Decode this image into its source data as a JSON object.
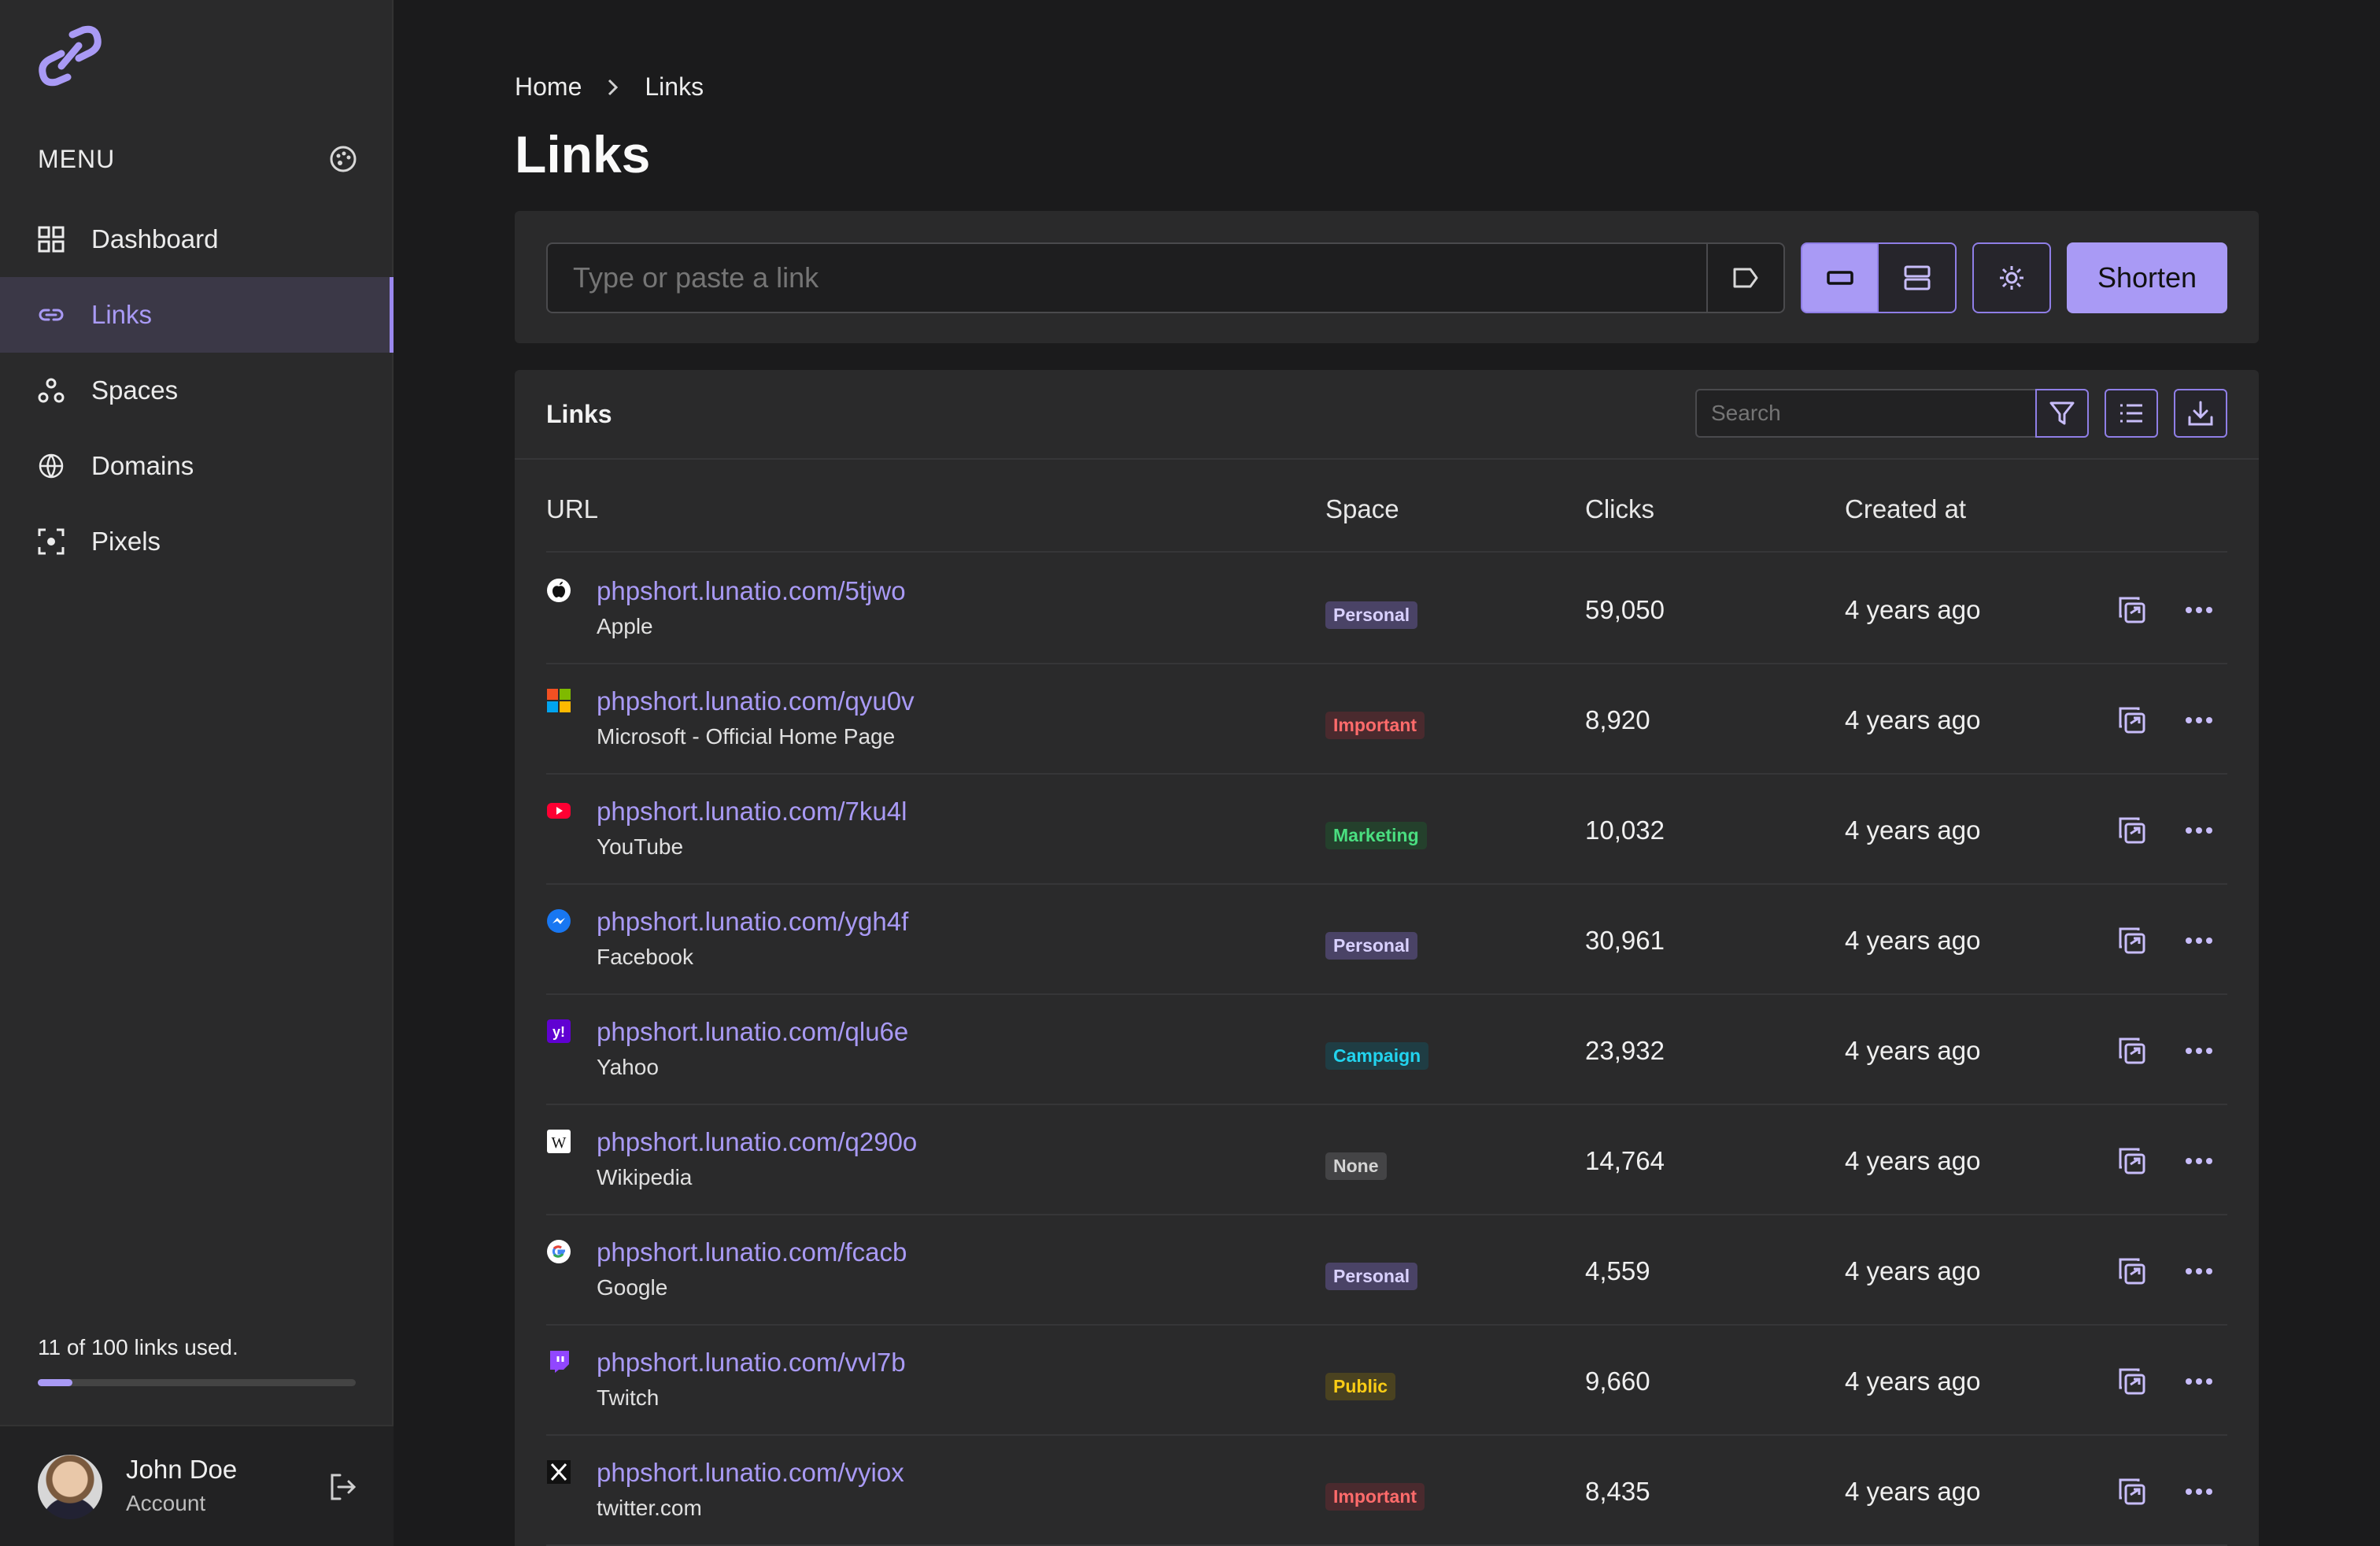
{
  "sidebar": {
    "menu_title": "MENU",
    "items": [
      {
        "label": "Dashboard",
        "icon": "grid-icon"
      },
      {
        "label": "Links",
        "icon": "link-icon"
      },
      {
        "label": "Spaces",
        "icon": "spaces-icon"
      },
      {
        "label": "Domains",
        "icon": "globe-www-icon"
      },
      {
        "label": "Pixels",
        "icon": "focus-icon"
      }
    ],
    "active_index": 1,
    "usage_text": "11 of 100 links used.",
    "usage_fraction": 0.11,
    "user": {
      "name": "John Doe",
      "subtitle": "Account"
    }
  },
  "breadcrumb": {
    "home": "Home",
    "current": "Links"
  },
  "page_title": "Links",
  "shorten": {
    "placeholder": "Type or paste a link",
    "button": "Shorten"
  },
  "links_panel": {
    "title": "Links",
    "search_placeholder": "Search",
    "columns": {
      "url": "URL",
      "space": "Space",
      "clicks": "Clicks",
      "created": "Created at"
    },
    "rows": [
      {
        "url": "phpshort.lunatio.com/5tjwo",
        "title": "Apple",
        "space": "Personal",
        "clicks": "59,050",
        "created": "4 years ago",
        "favicon": "apple-icon"
      },
      {
        "url": "phpshort.lunatio.com/qyu0v",
        "title": "Microsoft - Official Home Page",
        "space": "Important",
        "clicks": "8,920",
        "created": "4 years ago",
        "favicon": "microsoft-icon"
      },
      {
        "url": "phpshort.lunatio.com/7ku4l",
        "title": "YouTube",
        "space": "Marketing",
        "clicks": "10,032",
        "created": "4 years ago",
        "favicon": "youtube-icon"
      },
      {
        "url": "phpshort.lunatio.com/ygh4f",
        "title": "Facebook",
        "space": "Personal",
        "clicks": "30,961",
        "created": "4 years ago",
        "favicon": "messenger-icon"
      },
      {
        "url": "phpshort.lunatio.com/qlu6e",
        "title": "Yahoo",
        "space": "Campaign",
        "clicks": "23,932",
        "created": "4 years ago",
        "favicon": "yahoo-icon"
      },
      {
        "url": "phpshort.lunatio.com/q290o",
        "title": "Wikipedia",
        "space": "None",
        "clicks": "14,764",
        "created": "4 years ago",
        "favicon": "wikipedia-icon"
      },
      {
        "url": "phpshort.lunatio.com/fcacb",
        "title": "Google",
        "space": "Personal",
        "clicks": "4,559",
        "created": "4 years ago",
        "favicon": "google-icon"
      },
      {
        "url": "phpshort.lunatio.com/vvl7b",
        "title": "Twitch",
        "space": "Public",
        "clicks": "9,660",
        "created": "4 years ago",
        "favicon": "twitch-icon"
      },
      {
        "url": "phpshort.lunatio.com/vyiox",
        "title": "twitter.com",
        "space": "Important",
        "clicks": "8,435",
        "created": "4 years ago",
        "favicon": "x-icon"
      }
    ]
  },
  "colors": {
    "accent": "#a99af5",
    "space_personal": "#4a4366",
    "space_important": "#4a2a2e",
    "space_marketing": "#24402c",
    "space_campaign": "#1f3d44",
    "space_none": "#444446",
    "space_public": "#4a4220"
  }
}
